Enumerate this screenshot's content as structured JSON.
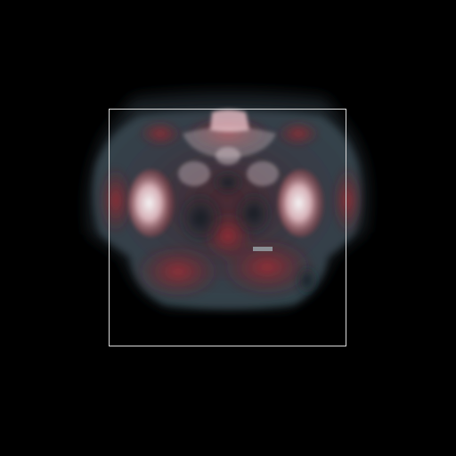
{
  "viewer": {
    "background_color": "#000000",
    "roi_box_color": "#d9d9d9",
    "palette": {
      "soft_tissue_outer": "#3a4f57",
      "soft_tissue_inner": "#4a2228",
      "perfusion_red": "#a52a30",
      "bone_highlight": "#f2c6cc",
      "bone_core": "#ffffff",
      "cavity_dark": "#142028"
    }
  }
}
